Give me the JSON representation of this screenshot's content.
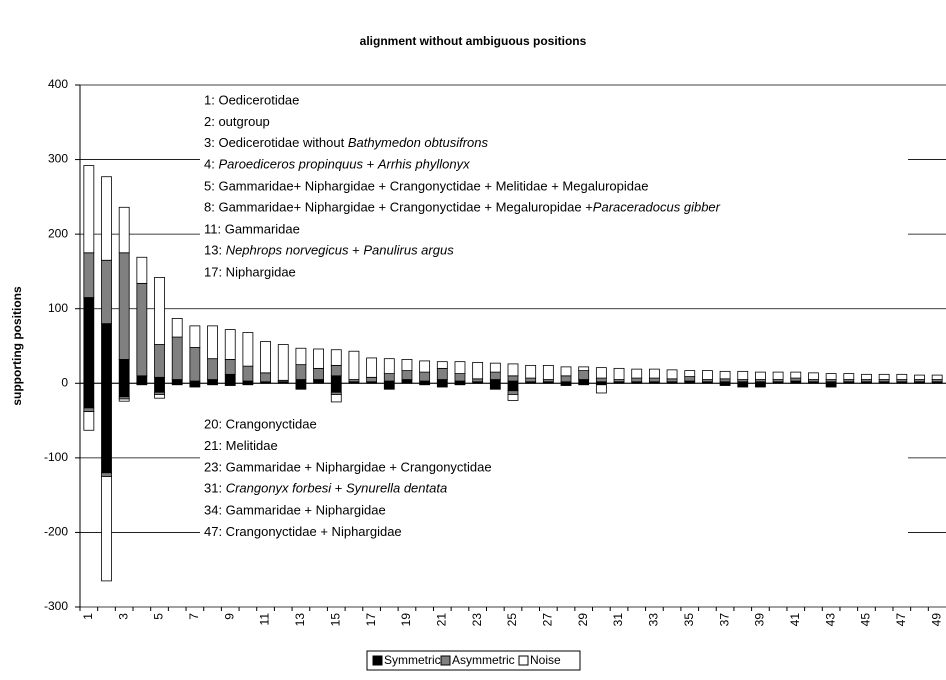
{
  "chart_data": {
    "type": "bar",
    "title": "alignment without ambiguous positions",
    "y_label": "supporting positions",
    "categories": [
      1,
      null,
      3,
      null,
      5,
      null,
      7,
      null,
      9,
      null,
      11,
      null,
      13,
      null,
      15,
      null,
      17,
      null,
      19,
      null,
      21,
      null,
      23,
      null,
      25,
      null,
      27,
      null,
      29,
      null,
      31,
      null,
      33,
      null,
      35,
      null,
      37,
      null,
      39,
      null,
      41,
      null,
      43,
      null,
      45,
      null,
      47,
      null,
      49
    ],
    "ylim": [
      -300,
      400
    ],
    "yticks": [
      -300,
      -200,
      -100,
      0,
      100,
      200,
      300,
      400
    ],
    "grid": true,
    "legend": "bottom",
    "series": [
      {
        "name": "Symmetric",
        "color": "#000000",
        "values": [
          115,
          80,
          32,
          10,
          8,
          5,
          3,
          5,
          12,
          3,
          2,
          2,
          5,
          5,
          10,
          2,
          2,
          3,
          5,
          3,
          5,
          3,
          2,
          5,
          3,
          2,
          2,
          2,
          5,
          2,
          2,
          2,
          2,
          2,
          3,
          2,
          2,
          2,
          2,
          2,
          3,
          2,
          2,
          2,
          2,
          2,
          2,
          2,
          2
        ],
        "negative_values": [
          -33,
          -120,
          -18,
          -2,
          -12,
          -2,
          -5,
          -2,
          -3,
          -2,
          0,
          0,
          -8,
          0,
          -12,
          0,
          0,
          -8,
          0,
          -2,
          -5,
          -2,
          0,
          -8,
          -10,
          0,
          0,
          -3,
          -2,
          -2,
          0,
          0,
          0,
          0,
          0,
          0,
          -3,
          -5,
          -5,
          0,
          0,
          0,
          -5,
          0,
          0,
          0,
          0,
          0,
          0
        ]
      },
      {
        "name": "Asymmetric",
        "color": "#808080",
        "values": [
          60,
          85,
          143,
          124,
          44,
          57,
          45,
          28,
          20,
          20,
          12,
          2,
          20,
          15,
          14,
          3,
          6,
          10,
          12,
          12,
          15,
          10,
          4,
          10,
          7,
          5,
          3,
          8,
          12,
          5,
          3,
          5,
          5,
          4,
          6,
          3,
          4,
          3,
          3,
          3,
          4,
          3,
          3,
          3,
          3,
          3,
          3,
          3,
          3
        ],
        "negative_values": [
          -5,
          -5,
          -3,
          0,
          -3,
          0,
          0,
          0,
          0,
          0,
          0,
          0,
          0,
          0,
          -3,
          0,
          0,
          0,
          0,
          0,
          0,
          0,
          0,
          0,
          -5,
          0,
          0,
          0,
          0,
          0,
          0,
          0,
          0,
          0,
          0,
          0,
          0,
          0,
          0,
          0,
          0,
          0,
          0,
          0,
          0,
          0,
          0,
          0,
          0
        ]
      },
      {
        "name": "Noise",
        "color": "#ffffff",
        "values": [
          117,
          112,
          61,
          35,
          90,
          25,
          29,
          44,
          40,
          45,
          42,
          48,
          22,
          26,
          21,
          38,
          26,
          20,
          15,
          15,
          9,
          16,
          22,
          12,
          16,
          17,
          19,
          12,
          5,
          14,
          15,
          12,
          12,
          12,
          8,
          12,
          10,
          11,
          10,
          10,
          8,
          9,
          8,
          8,
          7,
          7,
          7,
          6,
          6
        ],
        "negative_values": [
          -25,
          -140,
          -3,
          0,
          -5,
          0,
          0,
          0,
          0,
          0,
          0,
          0,
          0,
          0,
          -10,
          0,
          0,
          0,
          0,
          0,
          0,
          0,
          0,
          0,
          -8,
          0,
          0,
          0,
          0,
          -11,
          0,
          0,
          0,
          0,
          0,
          0,
          0,
          0,
          0,
          0,
          0,
          0,
          0,
          0,
          0,
          0,
          0,
          0,
          0
        ]
      }
    ],
    "annotations_upper": [
      "1: Oedicerotidae",
      "2: outgroup",
      [
        {
          "text": "3: Oedicerotidae without ",
          "italic": false
        },
        {
          "text": "Bathymedon obtusifrons",
          "italic": true
        }
      ],
      [
        {
          "text": "4: ",
          "italic": false
        },
        {
          "text": "Paroediceros propinquus",
          "italic": true
        },
        {
          "text": " + ",
          "italic": false
        },
        {
          "text": "Arrhis phyllonyx",
          "italic": true
        }
      ],
      "5: Gammaridae+ Niphargidae + Crangonyctidae + Melitidae + Megaluropidae",
      [
        {
          "text": "8: Gammaridae+ Niphargidae + Crangonyctidae + Megaluropidae +",
          "italic": false
        },
        {
          "text": "Paraceradocus gibber",
          "italic": true
        }
      ],
      "11: Gammaridae",
      [
        {
          "text": "13: ",
          "italic": false
        },
        {
          "text": "Nephrops norvegicus",
          "italic": true
        },
        {
          "text": " + ",
          "italic": false
        },
        {
          "text": "Panulirus argus",
          "italic": true
        }
      ],
      "17: Niphargidae"
    ],
    "annotations_lower": [
      "20: Crangonyctidae",
      "21: Melitidae",
      "23: Gammaridae + Niphargidae + Crangonyctidae",
      [
        {
          "text": "31: ",
          "italic": false
        },
        {
          "text": "Crangonyx forbesi",
          "italic": true
        },
        {
          "text": " + ",
          "italic": false
        },
        {
          "text": "Synurella dentata",
          "italic": true
        }
      ],
      "34: Gammaridae + Niphargidae",
      "47: Crangonyctidae + Niphargidae"
    ]
  }
}
